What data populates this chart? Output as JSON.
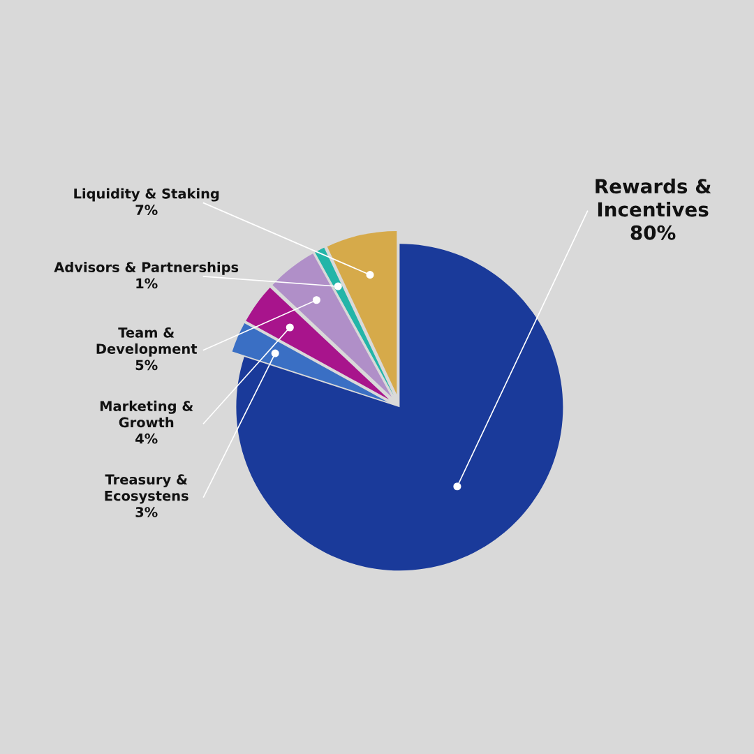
{
  "chart_data": {
    "type": "pie",
    "categories": [
      "Rewards &\nIncentives",
      "Treasury &\nEcosystens",
      "Marketing &\nGrowth",
      "Team &\nDevelopment",
      "Advisors & Partnerships",
      "Liquidity & Staking"
    ],
    "values": [
      80,
      3,
      4,
      5,
      1,
      7
    ],
    "value_labels": [
      "80%",
      "3%",
      "4%",
      "5%",
      "1%",
      "7%"
    ],
    "colors": [
      "#1a3a9a",
      "#3a6fc4",
      "#a8148c",
      "#b08fc8",
      "#22b5a8",
      "#d6aa4a"
    ],
    "legend": false
  }
}
